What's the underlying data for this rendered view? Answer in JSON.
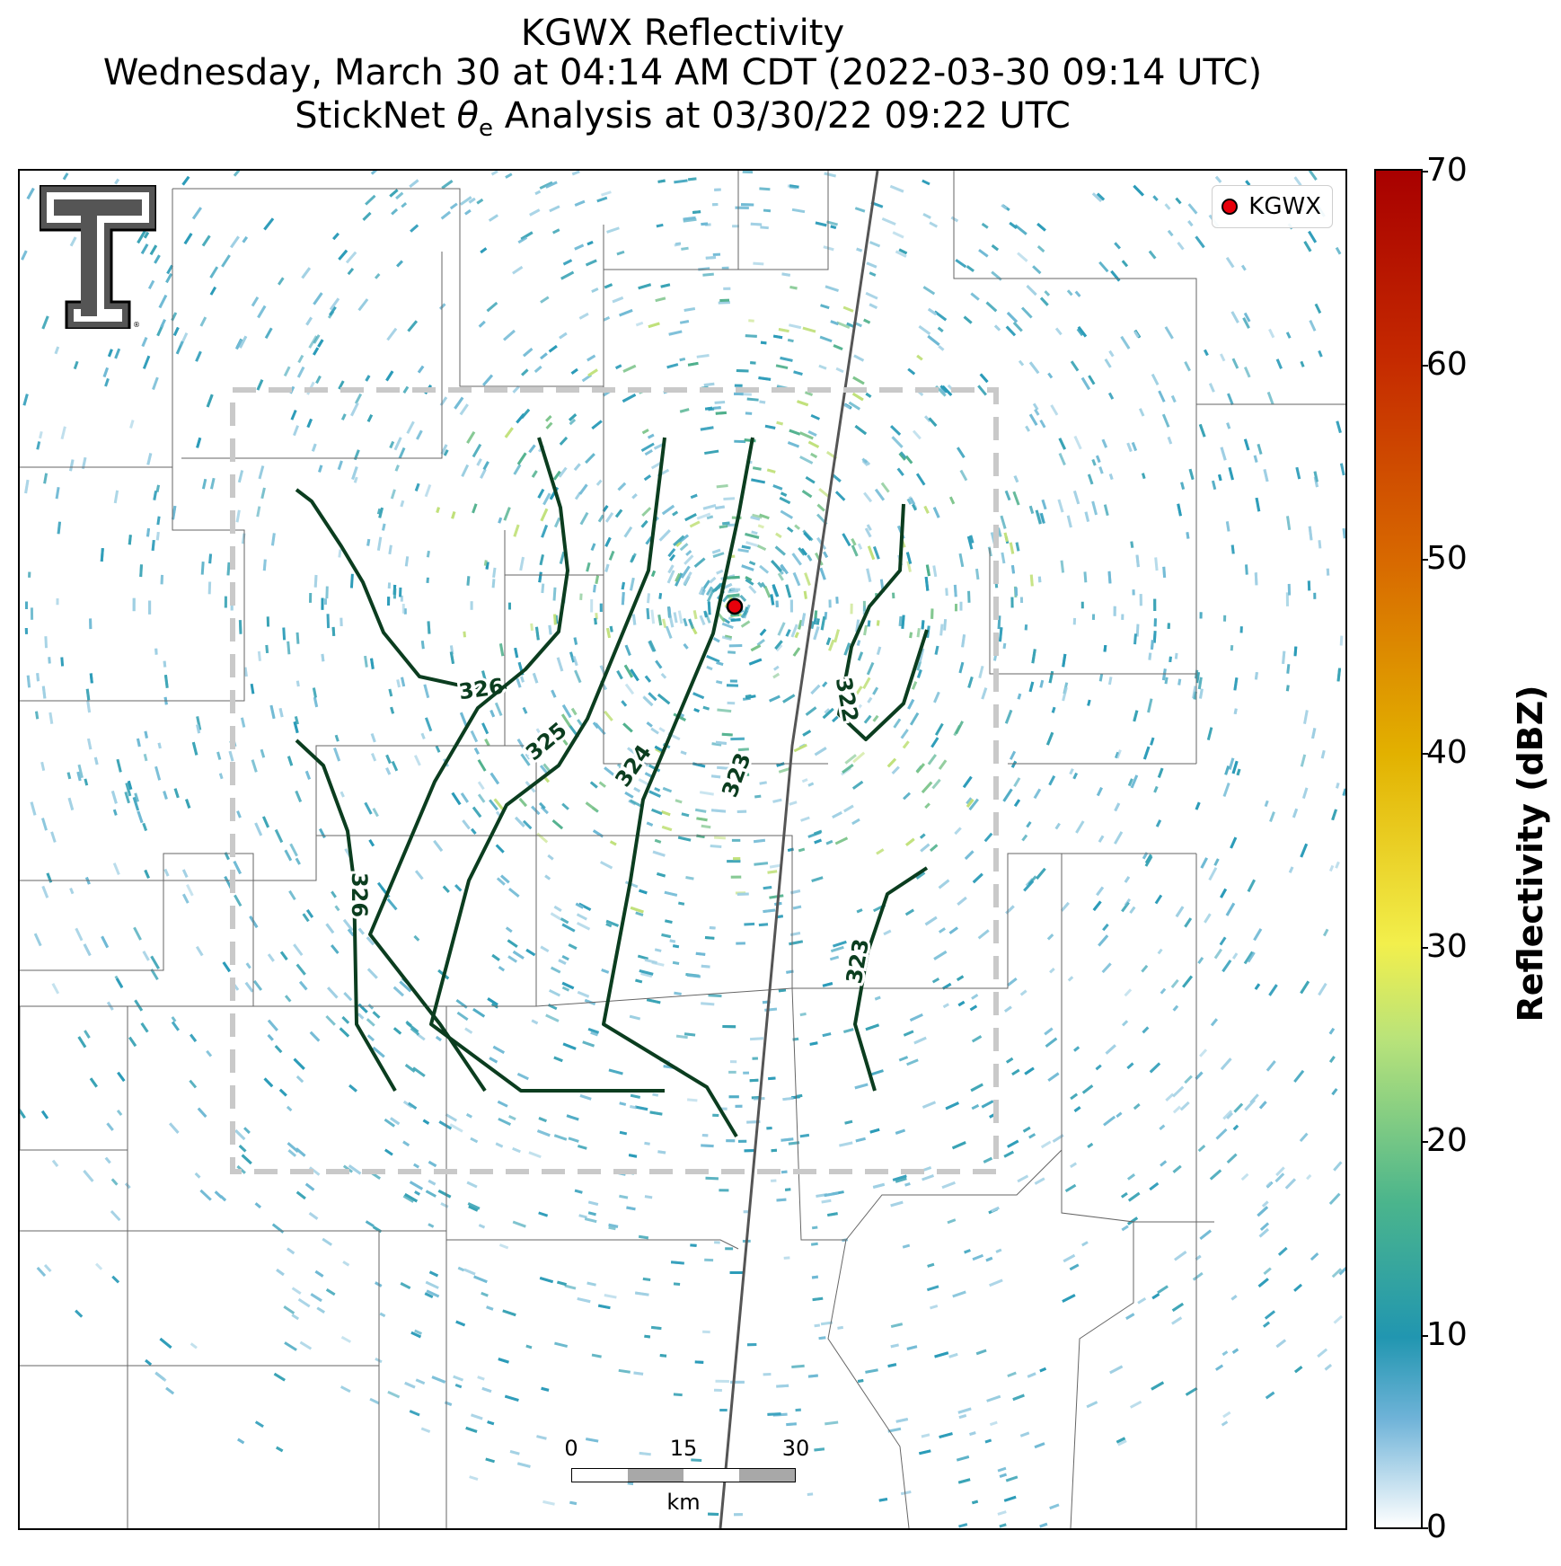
{
  "header": {
    "title_line1": "KGWX Reflectivity",
    "title_line2": "Wednesday, March 30 at 04:14 AM CDT (2022-03-30 09:14 UTC)",
    "title_line3_prefix": "StickNet ",
    "title_line3_symbol": "θ",
    "title_line3_sub": "e",
    "title_line3_suffix": " Analysis at 03/30/22 09:22 UTC"
  },
  "legend": {
    "label": "KGWX",
    "marker_color": "#e8000b"
  },
  "radar_site": {
    "name": "KGWX"
  },
  "contours": [
    {
      "label": "326"
    },
    {
      "label": "326"
    },
    {
      "label": "325"
    },
    {
      "label": "324"
    },
    {
      "label": "323"
    },
    {
      "label": "322"
    },
    {
      "label": "323"
    }
  ],
  "contour_color": "#0b3d1f",
  "domain_box_color": "#c9c9c9",
  "scalebar": {
    "ticks": [
      "0",
      "15",
      "30"
    ],
    "unit": "km"
  },
  "colorbar": {
    "label": "Reflectivity (dBZ)",
    "ticks": [
      "70",
      "60",
      "50",
      "40",
      "30",
      "20",
      "10",
      "0"
    ],
    "range": [
      0,
      70
    ],
    "colors": [
      "#ffffff",
      "#6fb3d8",
      "#2196b0",
      "#4bb58c",
      "#b9e37a",
      "#f2ef4c",
      "#e2b100",
      "#d86a00",
      "#c52a00",
      "#a80000"
    ]
  },
  "logo": {
    "name": "texas-tech-double-t-logo"
  }
}
